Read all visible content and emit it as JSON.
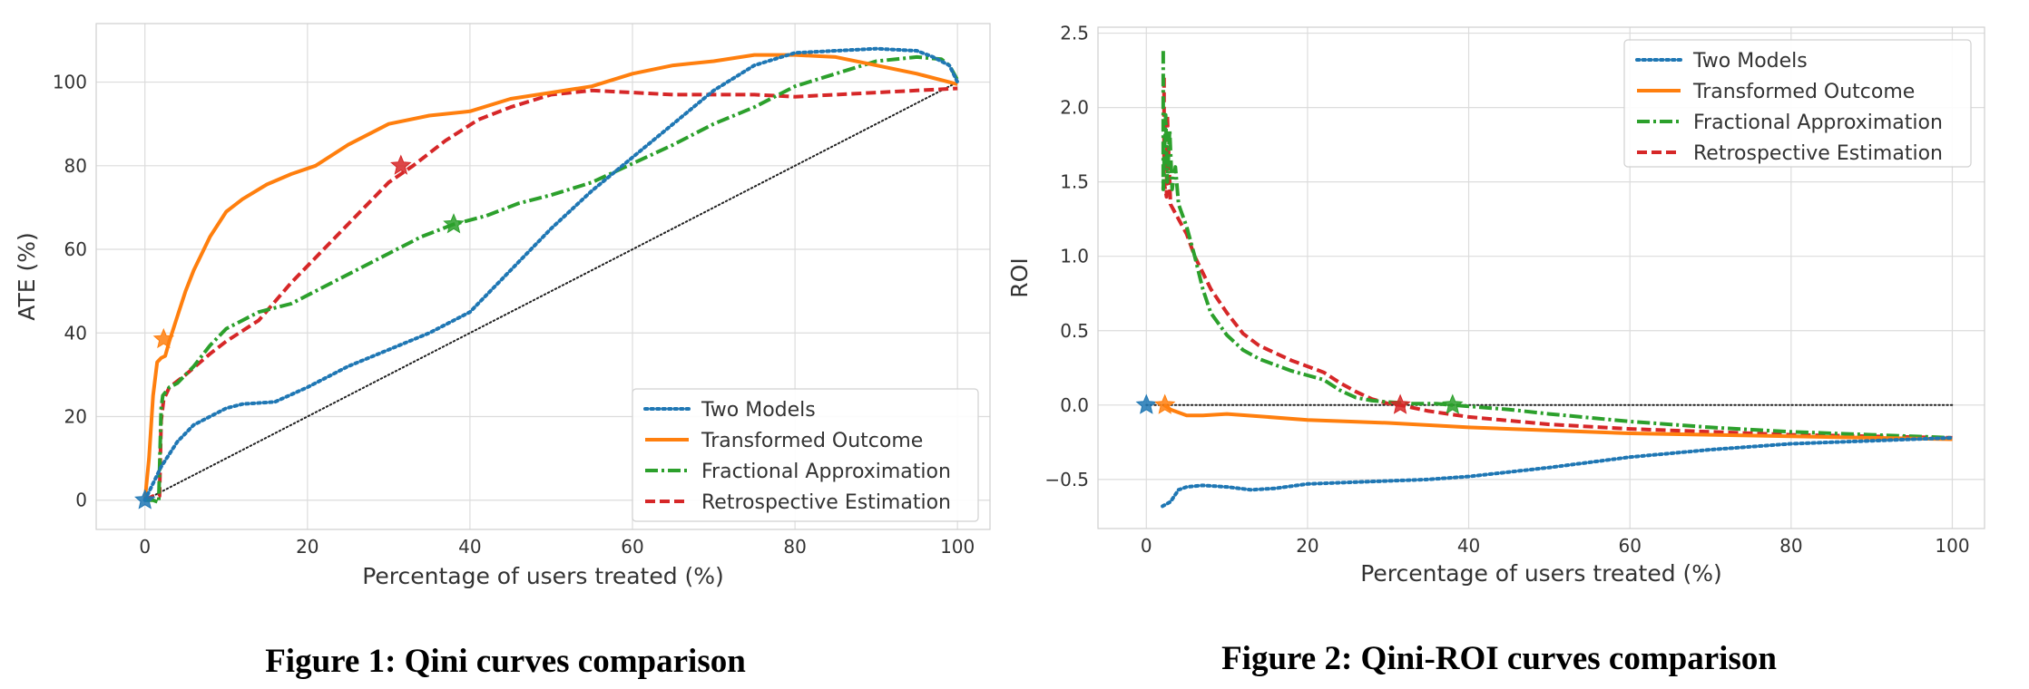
{
  "chart_data": [
    {
      "type": "line",
      "caption": "Figure 1: Qini curves comparison",
      "xlabel": "Percentage of users treated (%)",
      "ylabel": "ATE (%)",
      "xlim": [
        -6,
        104
      ],
      "ylim": [
        -7,
        114
      ],
      "xticks": [
        0,
        20,
        40,
        60,
        80,
        100
      ],
      "yticks": [
        0,
        20,
        40,
        60,
        80,
        100
      ],
      "grid": true,
      "legend_position": "lower-right",
      "series": [
        {
          "name": "Two Models",
          "color": "#1f77b4",
          "dash": "dotted",
          "x": [
            0,
            1,
            2,
            4,
            6,
            8,
            10,
            12,
            16,
            20,
            25,
            30,
            35,
            40,
            45,
            50,
            55,
            60,
            65,
            70,
            75,
            80,
            85,
            90,
            95,
            97,
            99,
            100
          ],
          "y": [
            0,
            4,
            8,
            14,
            18,
            20,
            22,
            23,
            23.5,
            27,
            32,
            36,
            40,
            45,
            55,
            65,
            74,
            82,
            90,
            98,
            104,
            107,
            107.5,
            108,
            107.5,
            106,
            104,
            100
          ],
          "star": [
            0,
            0
          ]
        },
        {
          "name": "Transformed Outcome",
          "color": "#ff7f0e",
          "dash": "solid",
          "x": [
            0,
            0.5,
            1,
            1.5,
            2,
            2.5,
            3,
            4,
            5,
            6,
            8,
            10,
            12,
            15,
            18,
            21,
            25,
            30,
            35,
            40,
            45,
            50,
            55,
            60,
            65,
            70,
            75,
            80,
            85,
            90,
            95,
            100
          ],
          "y": [
            0,
            10,
            25,
            33,
            34,
            34.5,
            38,
            44,
            50,
            55,
            63,
            69,
            72,
            75.5,
            78,
            80,
            85,
            90,
            92,
            93,
            96,
            97.5,
            99,
            102,
            104,
            105,
            106.5,
            106.5,
            106,
            104,
            102,
            99.5
          ],
          "star": [
            2.3,
            38.5
          ]
        },
        {
          "name": "Fractional Approximation",
          "color": "#2ca02c",
          "dash": "dashdot",
          "x": [
            0,
            1,
            1.7,
            2,
            2.2,
            3,
            4,
            6,
            8,
            10,
            14,
            18,
            22,
            26,
            30,
            34,
            38,
            42,
            46,
            50,
            55,
            60,
            65,
            70,
            75,
            80,
            85,
            90,
            95,
            98,
            99,
            100
          ],
          "y": [
            0,
            0,
            -0.5,
            22,
            25,
            27,
            28,
            32,
            37,
            41,
            45,
            47,
            51,
            55,
            59,
            63,
            66,
            68,
            71,
            73,
            76,
            80.5,
            85,
            90,
            94,
            99,
            102,
            105,
            106,
            105.5,
            104,
            100.5
          ],
          "star": [
            38,
            66
          ]
        },
        {
          "name": "Retrospective Estimation",
          "color": "#d62728",
          "dash": "dashed",
          "x": [
            0,
            1,
            1.8,
            2,
            2.3,
            3,
            5,
            8,
            10,
            14,
            18,
            22,
            26,
            30,
            33,
            37,
            41,
            45,
            50,
            55,
            60,
            65,
            70,
            75,
            80,
            85,
            90,
            95,
            100
          ],
          "y": [
            0,
            1,
            1,
            19,
            24,
            27,
            30,
            35,
            38,
            43,
            52,
            60,
            68,
            76,
            80,
            86,
            91,
            94,
            97,
            98,
            97.5,
            97,
            97,
            97,
            96.5,
            97,
            97.5,
            98,
            98.5
          ],
          "star": [
            31.5,
            80
          ]
        },
        {
          "name": "",
          "color": "#222222",
          "dash": "fine-dotted",
          "x": [
            0,
            100
          ],
          "y": [
            0,
            100
          ]
        }
      ]
    },
    {
      "type": "line",
      "caption": "Figure 2: Qini-ROI curves comparison",
      "xlabel": "Percentage of users treated (%)",
      "ylabel": "ROI",
      "xlim": [
        -6,
        104
      ],
      "ylim": [
        -0.83,
        2.54
      ],
      "xticks": [
        0,
        20,
        40,
        60,
        80,
        100
      ],
      "yticks": [
        -0.5,
        0.0,
        0.5,
        1.0,
        1.5,
        2.0,
        2.5
      ],
      "ytick_decimals": 1,
      "grid": true,
      "legend_position": "upper-right",
      "series": [
        {
          "name": "Two Models",
          "color": "#1f77b4",
          "dash": "dotted",
          "x": [
            2,
            3,
            4,
            5,
            7,
            10,
            13,
            16,
            20,
            25,
            30,
            35,
            40,
            50,
            60,
            70,
            80,
            90,
            100
          ],
          "y": [
            -0.68,
            -0.65,
            -0.57,
            -0.55,
            -0.54,
            -0.55,
            -0.57,
            -0.56,
            -0.53,
            -0.52,
            -0.51,
            -0.5,
            -0.48,
            -0.42,
            -0.35,
            -0.3,
            -0.26,
            -0.24,
            -0.22
          ],
          "star": [
            0,
            0
          ]
        },
        {
          "name": "Transformed Outcome",
          "color": "#ff7f0e",
          "dash": "solid",
          "x": [
            2.2,
            2.5,
            3,
            4,
            5,
            7,
            10,
            15,
            20,
            25,
            30,
            40,
            50,
            60,
            70,
            80,
            90,
            100
          ],
          "y": [
            0,
            -0.01,
            -0.03,
            -0.05,
            -0.07,
            -0.07,
            -0.06,
            -0.08,
            -0.1,
            -0.11,
            -0.12,
            -0.15,
            -0.17,
            -0.19,
            -0.2,
            -0.21,
            -0.22,
            -0.23
          ],
          "star": [
            2.3,
            0
          ]
        },
        {
          "name": "Fractional Approximation",
          "color": "#2ca02c",
          "dash": "dashdot",
          "x": [
            2.1,
            2.1,
            2.4,
            2.6,
            2.9,
            3.2,
            3.6,
            4,
            5,
            6,
            7,
            8,
            10,
            12,
            14,
            16,
            18,
            20,
            22,
            24,
            26,
            28,
            30,
            33,
            36,
            38,
            45,
            50,
            60,
            70,
            80,
            90,
            100
          ],
          "y": [
            2.38,
            1.45,
            1.95,
            1.5,
            1.85,
            1.45,
            1.6,
            1.35,
            1.2,
            1.0,
            0.78,
            0.62,
            0.47,
            0.37,
            0.31,
            0.27,
            0.23,
            0.2,
            0.17,
            0.1,
            0.05,
            0.03,
            0.02,
            0.01,
            0.01,
            0.0,
            -0.03,
            -0.06,
            -0.11,
            -0.15,
            -0.18,
            -0.2,
            -0.22
          ],
          "star": [
            38,
            0
          ]
        },
        {
          "name": "Retrospective Estimation",
          "color": "#d62728",
          "dash": "dashed",
          "x": [
            2.2,
            2.2,
            2.5,
            2.6,
            3,
            4,
            5,
            6,
            8,
            10,
            12,
            14,
            16,
            18,
            20,
            22,
            24,
            26,
            28,
            30,
            31.5,
            35,
            40,
            50,
            60,
            70,
            80,
            90,
            100
          ],
          "y": [
            2.2,
            1.5,
            1.4,
            1.95,
            1.35,
            1.25,
            1.15,
            1.0,
            0.78,
            0.62,
            0.48,
            0.4,
            0.35,
            0.3,
            0.26,
            0.22,
            0.15,
            0.09,
            0.04,
            0.01,
            0.0,
            -0.04,
            -0.08,
            -0.13,
            -0.16,
            -0.18,
            -0.2,
            -0.21,
            -0.22
          ],
          "star": [
            31.5,
            0
          ]
        },
        {
          "name": "",
          "color": "#222222",
          "dash": "fine-dotted",
          "x": [
            0,
            100
          ],
          "y": [
            0,
            0
          ]
        }
      ]
    }
  ]
}
